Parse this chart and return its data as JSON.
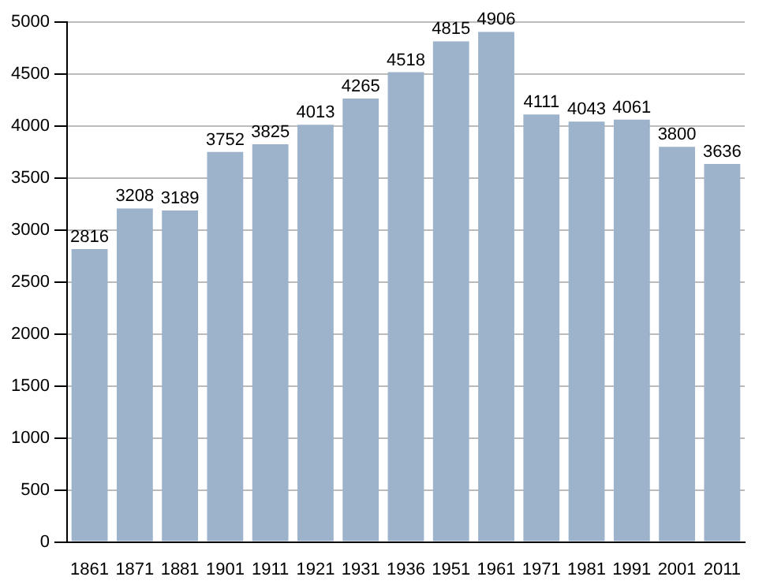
{
  "chart_data": {
    "type": "bar",
    "categories": [
      "1861",
      "1871",
      "1881",
      "1901",
      "1911",
      "1921",
      "1931",
      "1936",
      "1951",
      "1961",
      "1971",
      "1981",
      "1991",
      "2001",
      "2011"
    ],
    "values": [
      2816,
      3208,
      3189,
      3752,
      3825,
      4013,
      4265,
      4518,
      4815,
      4906,
      4111,
      4043,
      4061,
      3800,
      3636
    ],
    "color": "#9db3cc",
    "ylim": [
      0,
      5000
    ],
    "yticks": [
      0,
      500,
      1000,
      1500,
      2000,
      2500,
      3000,
      3500,
      4000,
      4500,
      5000
    ],
    "grid": "y",
    "data_labels": true
  }
}
